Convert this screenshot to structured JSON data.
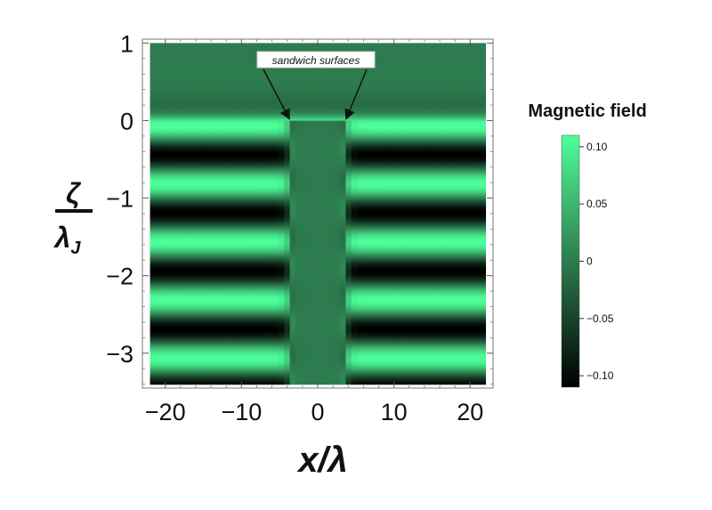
{
  "chart_data": {
    "type": "heatmap",
    "title": "",
    "xlabel": "x/λ",
    "ylabel_numerator": "ζ",
    "ylabel_denominator": "λ",
    "ylabel_denominator_subscript": "J",
    "xlim": [
      -23,
      23
    ],
    "ylim": [
      -3.45,
      1.05
    ],
    "x_ticks": [
      {
        "value": -20,
        "label": "−20"
      },
      {
        "value": -10,
        "label": "−10"
      },
      {
        "value": 0,
        "label": "0"
      },
      {
        "value": 10,
        "label": "10"
      },
      {
        "value": 20,
        "label": "20"
      }
    ],
    "y_ticks": [
      {
        "value": 1,
        "label": "1"
      },
      {
        "value": 0,
        "label": "0"
      },
      {
        "value": -1,
        "label": "−1"
      },
      {
        "value": -2,
        "label": "−2"
      },
      {
        "value": -3,
        "label": "−3"
      }
    ],
    "field": {
      "region_x": [
        -22,
        22
      ],
      "region_y": [
        -3.4,
        1
      ],
      "sandwich_x": [
        -3.5,
        3.5
      ],
      "amplitude": 0.11,
      "period": 0.75,
      "decay_top": 0,
      "description_of_pattern": ""
    },
    "colorbar": {
      "title": "Magnetic field",
      "range": [
        -0.11,
        0.11
      ],
      "colors": {
        "low": "#000000",
        "mid": "#2d7b4e",
        "high": "#4dff9a"
      },
      "ticks": [
        {
          "value": 0.1,
          "label": "0.10"
        },
        {
          "value": 0.05,
          "label": "0.05"
        },
        {
          "value": 0,
          "label": "0"
        },
        {
          "value": -0.05,
          "label": "−0.05"
        },
        {
          "value": -0.1,
          "label": "−0.10"
        }
      ]
    },
    "annotation": {
      "text": "sandwich surfaces",
      "targets_x": [
        -3.5,
        3.5
      ],
      "target_y": 0
    }
  }
}
